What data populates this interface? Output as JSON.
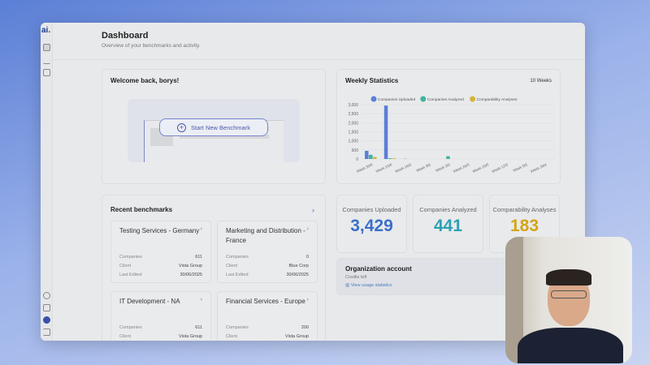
{
  "app": {
    "logo": "ai."
  },
  "header": {
    "title": "Dashboard",
    "subtitle": "Overview of your benchmarks and activity."
  },
  "welcome": {
    "title": "Welcome back, borys!",
    "button": "Start New Benchmark"
  },
  "weekly": {
    "title": "Weekly Statistics",
    "range": "10 Weeks"
  },
  "chart_data": {
    "type": "bar",
    "title": "",
    "categories": [
      "Week 30/6",
      "Week 23/6",
      "Week 16/6",
      "Week 9/6",
      "Week 2/6",
      "Week 26/5",
      "Week 19/5",
      "Week 12/5",
      "Week 5/5",
      "Week 28/4"
    ],
    "series": [
      {
        "name": "Companies Uploaded",
        "color": "#5b7fd6",
        "values": [
          450,
          2950,
          10,
          0,
          0,
          0,
          0,
          0,
          0,
          0
        ]
      },
      {
        "name": "Companies Analyzed",
        "color": "#3fb39f",
        "values": [
          230,
          40,
          0,
          0,
          150,
          0,
          0,
          0,
          0,
          0
        ]
      },
      {
        "name": "Comparability Analyses",
        "color": "#d6b33a",
        "values": [
          110,
          40,
          0,
          0,
          0,
          0,
          0,
          0,
          0,
          0
        ]
      }
    ],
    "yticks": [
      "0",
      "500",
      "1,000",
      "1,500",
      "2,000",
      "2,500",
      "3,000"
    ],
    "ylim": [
      0,
      3000
    ],
    "legend": "top",
    "grid": true
  },
  "recent": {
    "title": "Recent benchmarks",
    "labels": {
      "companies": "Companies",
      "client": "Client",
      "edited": "Last Edited"
    },
    "items": [
      {
        "name": "Testing Services - Germany",
        "companies": "611",
        "client": "Vista Group",
        "edited": "30/06/2025"
      },
      {
        "name": "Marketing and Distribution - France",
        "companies": "0",
        "client": "Blue Corp",
        "edited": "30/06/2025"
      },
      {
        "name": "IT Development - NA",
        "companies": "611",
        "client": "Vista Group",
        "edited": "30/06/2025"
      },
      {
        "name": "Financial Services - Europe",
        "companies": "200",
        "client": "Vista Group",
        "edited": ""
      }
    ]
  },
  "stats": [
    {
      "label": "Companies Uploaded",
      "value": "3,429",
      "color": "#3a6fc9"
    },
    {
      "label": "Companies Analyzed",
      "value": "441",
      "color": "#2aa0b3"
    },
    {
      "label": "Comparability Analyses",
      "value": "183",
      "color": "#d4a514"
    }
  ],
  "org": {
    "title": "Organization account",
    "credits": "Credits left",
    "link": "View usage statistics"
  }
}
